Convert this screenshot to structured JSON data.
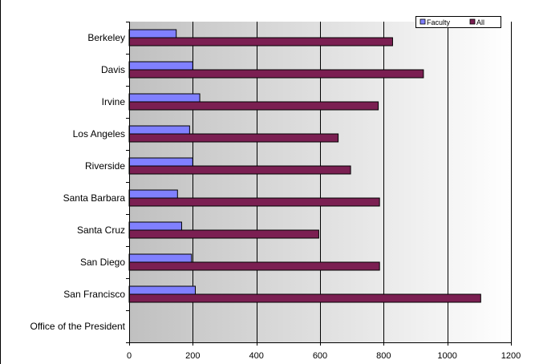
{
  "chart_data": {
    "type": "bar",
    "orientation": "horizontal",
    "title": "",
    "xlabel": "",
    "ylabel": "",
    "categories": [
      "Berkeley",
      "Davis",
      "Irvine",
      "Los Angeles",
      "Riverside",
      "Santa Barbara",
      "Santa Cruz",
      "San Diego",
      "San Francisco",
      "Office of the President"
    ],
    "series": [
      {
        "name": "Faculty",
        "color": "#8080ff",
        "values": [
          148,
          200,
          222,
          190,
          200,
          152,
          165,
          196,
          208,
          0
        ]
      },
      {
        "name": "All",
        "color": "#7b1f52",
        "values": [
          828,
          925,
          783,
          657,
          696,
          787,
          596,
          787,
          1105,
          0
        ]
      }
    ],
    "xlim": [
      0,
      1200
    ],
    "x_ticks": [
      "0",
      "200",
      "400",
      "600",
      "800",
      "1000",
      "1200"
    ],
    "grid": "vertical",
    "legend": "top-right"
  }
}
